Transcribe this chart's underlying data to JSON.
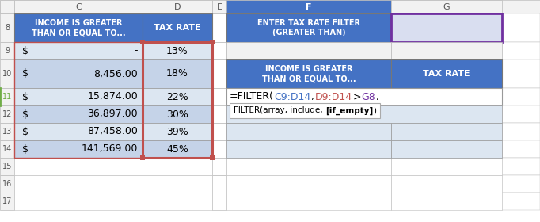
{
  "left_data": [
    [
      "$",
      "-",
      "13%"
    ],
    [
      "$",
      "8,456.00",
      "18%"
    ],
    [
      "$",
      "15,874.00",
      "22%"
    ],
    [
      "$",
      "36,897.00",
      "30%"
    ],
    [
      "$",
      "87,458.00",
      "39%"
    ],
    [
      "$",
      "141,569.00",
      "45%"
    ]
  ],
  "tooltip_text_plain": "FILTER(array, include, ",
  "tooltip_bold": "[if_empty]",
  "tooltip_end": ")",
  "header_bg": "#4472C4",
  "data_bg_light": "#C5D3E8",
  "data_bg_lighter": "#DCE6F1",
  "col_label_bg": "#F2F2F2",
  "red_border": "#C0504D",
  "purple_border": "#7030A0",
  "formula_black": "#000000",
  "formula_blue": "#4472C4",
  "formula_red": "#C0504D",
  "formula_purple": "#7030A0",
  "row11_green": "#70AD47",
  "g8_bg": "#D9DEF0"
}
